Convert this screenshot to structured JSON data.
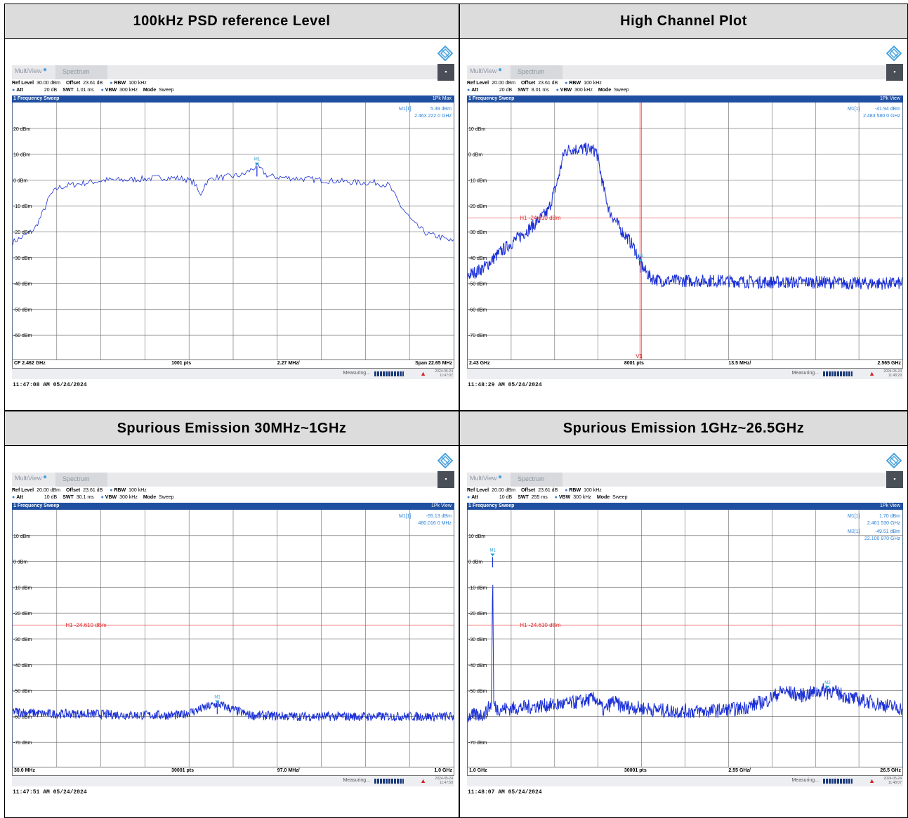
{
  "panels": [
    {
      "header": "100kHz  PSD reference Level",
      "tab1": "MultiView",
      "tab2": "Spectrum",
      "line1": {
        "ref_label": "Ref Level",
        "ref_value": "30.00 dBm",
        "offset_label": "Offset",
        "offset_value": "23.61 dB",
        "rbw_label": "RBW",
        "rbw_value": "100 kHz"
      },
      "line2": {
        "att_label": "Att",
        "att_value": "20 dB",
        "swt_label": "SWT",
        "swt_value": "1.01 ms",
        "vbw_label": "VBW",
        "vbw_value": "300 kHz",
        "mode_label": "Mode",
        "mode_value": "Sweep"
      },
      "sweep_title": "1 Frequency Sweep",
      "trace_mode": "1Pk Max",
      "marker_readouts": [
        {
          "id": "M1[1]",
          "level": "5.39 dBm",
          "freq": "2.463 222 0 GHz"
        }
      ],
      "bottom": {
        "left": "CF 2.462 GHz",
        "pts": "1001 pts",
        "div": "2.27 MHz/",
        "right": "Span 22.65 MHz"
      },
      "status": {
        "measuring": "Measuring...",
        "date": "2024-05-24",
        "time": "11:47:07"
      },
      "timestamp": "11:47:08 AM  05/24/2024"
    },
    {
      "header": "High Channel Plot",
      "tab1": "MultiView",
      "tab2": "Spectrum",
      "line1": {
        "ref_label": "Ref Level",
        "ref_value": "20.00 dBm",
        "offset_label": "Offset",
        "offset_value": "23.61 dB",
        "rbw_label": "RBW",
        "rbw_value": "100 kHz"
      },
      "line2": {
        "att_label": "Att",
        "att_value": "20 dB",
        "swt_label": "SWT",
        "swt_value": "8.01 ms",
        "vbw_label": "VBW",
        "vbw_value": "300 kHz",
        "mode_label": "Mode",
        "mode_value": "Sweep"
      },
      "sweep_title": "1 Frequency Sweep",
      "trace_mode": "1Pk View",
      "marker_readouts": [
        {
          "id": "M1[1]",
          "level": "-41.94 dBm",
          "freq": "2.483 580 0 GHz"
        }
      ],
      "bottom": {
        "left": "2.43 GHz",
        "pts": "8001 pts",
        "div": "13.5 MHz/",
        "right": "2.565 GHz"
      },
      "status": {
        "measuring": "Measuring...",
        "date": "2024-05-24",
        "time": "11:48:29"
      },
      "timestamp": "11:48:29 AM  05/24/2024"
    },
    {
      "header": "Spurious Emission  30MHz~1GHz",
      "tab1": "MultiView",
      "tab2": "Spectrum",
      "line1": {
        "ref_label": "Ref Level",
        "ref_value": "20.00 dBm",
        "offset_label": "Offset",
        "offset_value": "23.61 dB",
        "rbw_label": "RBW",
        "rbw_value": "100 kHz"
      },
      "line2": {
        "att_label": "Att",
        "att_value": "10 dB",
        "swt_label": "SWT",
        "swt_value": "30.1 ms",
        "vbw_label": "VBW",
        "vbw_value": "300 kHz",
        "mode_label": "Mode",
        "mode_value": "Sweep"
      },
      "sweep_title": "1 Frequency Sweep",
      "trace_mode": "1Pk View",
      "marker_readouts": [
        {
          "id": "M1[1]",
          "level": "-55.13 dBm",
          "freq": "480.016 0 MHz"
        }
      ],
      "bottom": {
        "left": "30.0 MHz",
        "pts": "30001 pts",
        "div": "97.0 MHz/",
        "right": "1.0 GHz"
      },
      "status": {
        "measuring": "Measuring...",
        "date": "2024-05-24",
        "time": "11:47:50"
      },
      "timestamp": "11:47:51 AM  05/24/2024"
    },
    {
      "header": "Spurious Emission  1GHz~26.5GHz",
      "tab1": "MultiView",
      "tab2": "Spectrum",
      "line1": {
        "ref_label": "Ref Level",
        "ref_value": "20.00 dBm",
        "offset_label": "Offset",
        "offset_value": "23.61 dB",
        "rbw_label": "RBW",
        "rbw_value": "100 kHz"
      },
      "line2": {
        "att_label": "Att",
        "att_value": "10 dB",
        "swt_label": "SWT",
        "swt_value": "255 ms",
        "vbw_label": "VBW",
        "vbw_value": "300 kHz",
        "mode_label": "Mode",
        "mode_value": "Sweep"
      },
      "sweep_title": "1 Frequency Sweep",
      "trace_mode": "1Pk View",
      "marker_readouts": [
        {
          "id": "M1[1]",
          "level": "1.70 dBm",
          "freq": "2.461 530 GHz"
        },
        {
          "id": "M2[1]",
          "level": "-49.51 dBm",
          "freq": "22.100 970 GHz"
        }
      ],
      "bottom": {
        "left": "1.0 GHz",
        "pts": "30001 pts",
        "div": "2.55 GHz/",
        "right": "26.5 GHz"
      },
      "status": {
        "measuring": "Measuring...",
        "date": "2024-05-24",
        "time": "11:48:07"
      },
      "timestamp": "11:48:07 AM  05/24/2024"
    }
  ],
  "chart_data": [
    {
      "type": "line",
      "xlabel": "",
      "ylabel": "",
      "xlim": [
        2450.675,
        2473.325
      ],
      "ylim": [
        -70,
        30
      ],
      "y_tick_labels": [
        "20 dBm",
        "10 dBm",
        "0 dBm",
        "-10 dBm",
        "-20 dBm",
        "-30 dBm",
        "-40 dBm",
        "-50 dBm",
        "-60 dBm"
      ],
      "y_tick_values": [
        20,
        10,
        0,
        -10,
        -20,
        -30,
        -40,
        -50,
        -60
      ],
      "series": [
        {
          "x": [
            2450.68,
            2451.2,
            2451.8,
            2452.2,
            2452.6,
            2453.0,
            2453.6,
            2454.5,
            2455.5,
            2456.5,
            2457.5,
            2458.5,
            2459.5,
            2460.0,
            2460.3,
            2460.6,
            2461.0,
            2461.5,
            2462.0,
            2462.5,
            2463.22,
            2463.8,
            2464.5,
            2465.5,
            2466.5,
            2467.5,
            2468.5,
            2469.3,
            2470.0,
            2470.6,
            2471.3,
            2472.0,
            2472.6,
            2473.32
          ],
          "y": [
            -24,
            -22,
            -19,
            -13,
            -6,
            -3,
            -2,
            -1,
            0,
            0,
            0.5,
            1,
            0.5,
            -1,
            -6,
            -1,
            1,
            1,
            1.5,
            2,
            5.39,
            1.5,
            1,
            0.5,
            0,
            -0.5,
            -1,
            -1,
            -2,
            -10,
            -17,
            -21,
            -22,
            -24
          ]
        }
      ],
      "markers": [
        {
          "name": "M1",
          "x": 2463.222,
          "y": 5.39
        }
      ],
      "grid": true
    },
    {
      "type": "line",
      "xlabel": "",
      "ylabel": "",
      "xlim": [
        2430,
        2565
      ],
      "ylim": [
        -80,
        20
      ],
      "y_tick_labels": [
        "10 dBm",
        "0 dBm",
        "-10 dBm",
        "-20 dBm",
        "-30 dBm",
        "-40 dBm",
        "-50 dBm",
        "-60 dBm",
        "-70 dBm"
      ],
      "y_tick_values": [
        10,
        0,
        -10,
        -20,
        -30,
        -40,
        -50,
        -60,
        -70
      ],
      "series": [
        {
          "x": [
            2430,
            2435,
            2440,
            2445,
            2450,
            2455,
            2458,
            2460,
            2462,
            2464,
            2466,
            2468,
            2470,
            2472,
            2474,
            2476,
            2478,
            2480,
            2482,
            2483.58,
            2485,
            2487,
            2490,
            2500,
            2510,
            2520,
            2530,
            2540,
            2550,
            2560,
            2565
          ],
          "y": [
            -47,
            -44,
            -38,
            -33,
            -28,
            -22,
            -10,
            1,
            2,
            2,
            2,
            2,
            1,
            -12,
            -22,
            -26,
            -30,
            -33,
            -37,
            -41.94,
            -45,
            -48,
            -49,
            -49,
            -49,
            -49.5,
            -49.5,
            -49.5,
            -50,
            -50,
            -50
          ]
        }
      ],
      "markers": [
        {
          "name": "M1",
          "x": 2483.58,
          "y": -41.94
        }
      ],
      "reference_lines": [
        {
          "name": "H1",
          "label": "H1 -24.610 dBm",
          "y": -24.61
        }
      ],
      "vertical_lines": [
        {
          "name": "V1",
          "label": "V1",
          "x": 2483.5
        }
      ],
      "grid": true
    },
    {
      "type": "line",
      "xlabel": "",
      "ylabel": "",
      "xlim": [
        30,
        1000
      ],
      "ylim": [
        -80,
        20
      ],
      "y_tick_labels": [
        "10 dBm",
        "0 dBm",
        "-10 dBm",
        "-20 dBm",
        "-30 dBm",
        "-40 dBm",
        "-50 dBm",
        "-60 dBm",
        "-70 dBm"
      ],
      "y_tick_values": [
        10,
        0,
        -10,
        -20,
        -30,
        -40,
        -50,
        -60,
        -70
      ],
      "series": [
        {
          "x": [
            30,
            100,
            200,
            300,
            400,
            480.016,
            550,
            650,
            750,
            850,
            950,
            1000
          ],
          "y": [
            -58,
            -59,
            -59,
            -59.5,
            -59.5,
            -55.13,
            -59.5,
            -60,
            -60,
            -60,
            -60,
            -60
          ]
        }
      ],
      "markers": [
        {
          "name": "M1",
          "x": 480.016,
          "y": -55.13
        }
      ],
      "reference_lines": [
        {
          "name": "H1",
          "label": "H1 -24.610 dBm",
          "y": -24.61
        }
      ],
      "grid": true
    },
    {
      "type": "line",
      "xlabel": "",
      "ylabel": "",
      "xlim": [
        1000,
        26500
      ],
      "ylim": [
        -80,
        20
      ],
      "y_tick_labels": [
        "10 dBm",
        "0 dBm",
        "-10 dBm",
        "-20 dBm",
        "-30 dBm",
        "-40 dBm",
        "-50 dBm",
        "-60 dBm",
        "-70 dBm"
      ],
      "y_tick_values": [
        10,
        0,
        -10,
        -20,
        -30,
        -40,
        -50,
        -60,
        -70
      ],
      "series": [
        {
          "x": [
            1000,
            2000,
            2400,
            2461.53,
            2520,
            2700,
            3500,
            5000,
            7000,
            8500,
            9000,
            9500,
            10000,
            11500,
            13000,
            15000,
            17000,
            18500,
            19500,
            20500,
            22100.97,
            23500,
            25000,
            26500
          ],
          "y": [
            -60,
            -59,
            -55,
            1.7,
            -55,
            -57,
            -57,
            -56,
            -55,
            -53,
            -58,
            -54,
            -56,
            -57,
            -58,
            -58,
            -57,
            -54,
            -50,
            -52,
            -49.51,
            -53,
            -55,
            -57
          ]
        }
      ],
      "markers": [
        {
          "name": "M1",
          "x": 2461.53,
          "y": 1.7
        },
        {
          "name": "M2",
          "x": 22100.97,
          "y": -49.51
        }
      ],
      "reference_lines": [
        {
          "name": "H1",
          "label": "H1 -24.610 dBm",
          "y": -24.61
        }
      ],
      "grid": true
    }
  ]
}
